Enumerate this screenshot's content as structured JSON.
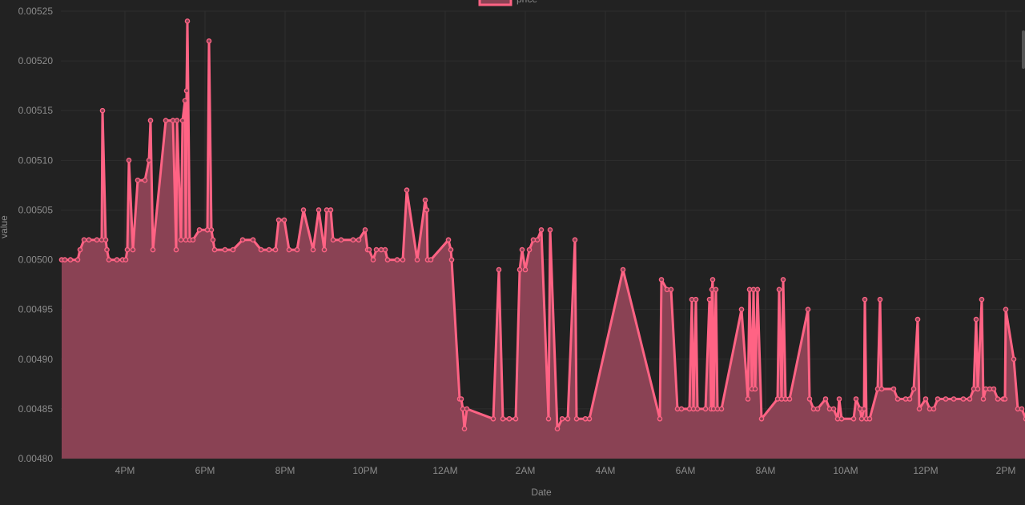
{
  "chart_data": {
    "type": "area",
    "xlabel": "Date",
    "ylabel": "value",
    "legend": {
      "position": "top-center",
      "entries": [
        "price"
      ]
    },
    "grid": true,
    "colors": {
      "line": "#ff6384",
      "fill": "#8a4254",
      "background": "#222222",
      "grid": "#2e2e2e",
      "text": "#8c8c8c"
    },
    "ylim": [
      0.0048,
      0.00525
    ],
    "xlim_hours": [
      14.4,
      38.4
    ],
    "y_ticks": [
      "0.00480",
      "0.00485",
      "0.00490",
      "0.00495",
      "0.00500",
      "0.00505",
      "0.00510",
      "0.00515",
      "0.00520",
      "0.00525"
    ],
    "x_ticks": [
      {
        "label": "4PM",
        "hour": 16
      },
      {
        "label": "6PM",
        "hour": 18
      },
      {
        "label": "8PM",
        "hour": 20
      },
      {
        "label": "10PM",
        "hour": 22
      },
      {
        "label": "12AM",
        "hour": 24
      },
      {
        "label": "2AM",
        "hour": 26
      },
      {
        "label": "4AM",
        "hour": 28
      },
      {
        "label": "6AM",
        "hour": 30
      },
      {
        "label": "8AM",
        "hour": 32
      },
      {
        "label": "10AM",
        "hour": 34
      },
      {
        "label": "12PM",
        "hour": 36
      },
      {
        "label": "2PM",
        "hour": 38
      }
    ],
    "series": [
      {
        "name": "price",
        "points": [
          [
            14.42,
            0.005
          ],
          [
            14.5,
            0.005
          ],
          [
            14.64,
            0.005
          ],
          [
            14.82,
            0.005
          ],
          [
            14.88,
            0.00501
          ],
          [
            14.98,
            0.00502
          ],
          [
            15.1,
            0.00502
          ],
          [
            15.3,
            0.00502
          ],
          [
            15.42,
            0.00502
          ],
          [
            15.44,
            0.00515
          ],
          [
            15.52,
            0.00502
          ],
          [
            15.55,
            0.00501
          ],
          [
            15.6,
            0.005
          ],
          [
            15.8,
            0.005
          ],
          [
            15.94,
            0.005
          ],
          [
            16.02,
            0.005
          ],
          [
            16.06,
            0.00501
          ],
          [
            16.1,
            0.0051
          ],
          [
            16.2,
            0.00501
          ],
          [
            16.32,
            0.00508
          ],
          [
            16.5,
            0.00508
          ],
          [
            16.6,
            0.0051
          ],
          [
            16.64,
            0.00514
          ],
          [
            16.7,
            0.00501
          ],
          [
            17.02,
            0.00514
          ],
          [
            17.2,
            0.00514
          ],
          [
            17.28,
            0.00501
          ],
          [
            17.3,
            0.00514
          ],
          [
            17.4,
            0.00502
          ],
          [
            17.44,
            0.00514
          ],
          [
            17.5,
            0.00516
          ],
          [
            17.52,
            0.00502
          ],
          [
            17.54,
            0.00517
          ],
          [
            17.56,
            0.00524
          ],
          [
            17.62,
            0.00502
          ],
          [
            17.7,
            0.00502
          ],
          [
            17.86,
            0.00503
          ],
          [
            18.06,
            0.00503
          ],
          [
            18.1,
            0.00522
          ],
          [
            18.16,
            0.00503
          ],
          [
            18.2,
            0.00502
          ],
          [
            18.24,
            0.00501
          ],
          [
            18.5,
            0.00501
          ],
          [
            18.7,
            0.00501
          ],
          [
            18.94,
            0.00502
          ],
          [
            19.2,
            0.00502
          ],
          [
            19.4,
            0.00501
          ],
          [
            19.6,
            0.00501
          ],
          [
            19.76,
            0.00501
          ],
          [
            19.84,
            0.00504
          ],
          [
            19.98,
            0.00504
          ],
          [
            20.1,
            0.00501
          ],
          [
            20.3,
            0.00501
          ],
          [
            20.46,
            0.00505
          ],
          [
            20.7,
            0.00501
          ],
          [
            20.84,
            0.00505
          ],
          [
            20.98,
            0.00501
          ],
          [
            21.04,
            0.00505
          ],
          [
            21.14,
            0.00505
          ],
          [
            21.2,
            0.00502
          ],
          [
            21.4,
            0.00502
          ],
          [
            21.7,
            0.00502
          ],
          [
            21.84,
            0.00502
          ],
          [
            22.0,
            0.00503
          ],
          [
            22.06,
            0.00501
          ],
          [
            22.1,
            0.00501
          ],
          [
            22.2,
            0.005
          ],
          [
            22.28,
            0.00501
          ],
          [
            22.4,
            0.00501
          ],
          [
            22.5,
            0.00501
          ],
          [
            22.56,
            0.005
          ],
          [
            22.8,
            0.005
          ],
          [
            22.94,
            0.005
          ],
          [
            23.04,
            0.00507
          ],
          [
            23.3,
            0.005
          ],
          [
            23.5,
            0.00506
          ],
          [
            23.54,
            0.00505
          ],
          [
            23.56,
            0.005
          ],
          [
            23.64,
            0.005
          ],
          [
            24.08,
            0.00502
          ],
          [
            24.14,
            0.00501
          ],
          [
            24.16,
            0.005
          ],
          [
            24.36,
            0.00486
          ],
          [
            24.4,
            0.00486
          ],
          [
            24.44,
            0.00485
          ],
          [
            24.48,
            0.00483
          ],
          [
            24.54,
            0.00485
          ],
          [
            25.2,
            0.00484
          ],
          [
            25.34,
            0.00499
          ],
          [
            25.44,
            0.00484
          ],
          [
            25.6,
            0.00484
          ],
          [
            25.76,
            0.00484
          ],
          [
            25.86,
            0.00499
          ],
          [
            25.92,
            0.00501
          ],
          [
            26.0,
            0.00499
          ],
          [
            26.1,
            0.00501
          ],
          [
            26.2,
            0.00502
          ],
          [
            26.3,
            0.00502
          ],
          [
            26.4,
            0.00503
          ],
          [
            26.58,
            0.00484
          ],
          [
            26.62,
            0.00503
          ],
          [
            26.8,
            0.00483
          ],
          [
            26.92,
            0.00484
          ],
          [
            27.06,
            0.00484
          ],
          [
            27.24,
            0.00502
          ],
          [
            27.28,
            0.00484
          ],
          [
            27.5,
            0.00484
          ],
          [
            27.6,
            0.00484
          ],
          [
            28.44,
            0.00499
          ],
          [
            29.36,
            0.00484
          ],
          [
            29.4,
            0.00498
          ],
          [
            29.54,
            0.00497
          ],
          [
            29.64,
            0.00497
          ],
          [
            29.8,
            0.00485
          ],
          [
            29.9,
            0.00485
          ],
          [
            30.1,
            0.00485
          ],
          [
            30.16,
            0.00496
          ],
          [
            30.2,
            0.00485
          ],
          [
            30.26,
            0.00496
          ],
          [
            30.3,
            0.00485
          ],
          [
            30.5,
            0.00485
          ],
          [
            30.6,
            0.00496
          ],
          [
            30.64,
            0.00485
          ],
          [
            30.66,
            0.00497
          ],
          [
            30.68,
            0.00498
          ],
          [
            30.7,
            0.00485
          ],
          [
            30.76,
            0.00497
          ],
          [
            30.8,
            0.00485
          ],
          [
            30.9,
            0.00485
          ],
          [
            31.4,
            0.00495
          ],
          [
            31.56,
            0.00486
          ],
          [
            31.6,
            0.00497
          ],
          [
            31.66,
            0.00487
          ],
          [
            31.7,
            0.00497
          ],
          [
            31.74,
            0.00487
          ],
          [
            31.8,
            0.00497
          ],
          [
            31.9,
            0.00484
          ],
          [
            32.3,
            0.00486
          ],
          [
            32.34,
            0.00497
          ],
          [
            32.4,
            0.00486
          ],
          [
            32.44,
            0.00498
          ],
          [
            32.5,
            0.00486
          ],
          [
            32.6,
            0.00486
          ],
          [
            33.06,
            0.00495
          ],
          [
            33.1,
            0.00486
          ],
          [
            33.2,
            0.00485
          ],
          [
            33.3,
            0.00485
          ],
          [
            33.5,
            0.00486
          ],
          [
            33.6,
            0.00485
          ],
          [
            33.7,
            0.00485
          ],
          [
            33.8,
            0.00484
          ],
          [
            33.84,
            0.00486
          ],
          [
            33.9,
            0.00484
          ],
          [
            34.2,
            0.00484
          ],
          [
            34.26,
            0.00486
          ],
          [
            34.36,
            0.00485
          ],
          [
            34.4,
            0.00484
          ],
          [
            34.46,
            0.00485
          ],
          [
            34.48,
            0.00496
          ],
          [
            34.52,
            0.00484
          ],
          [
            34.6,
            0.00484
          ],
          [
            34.8,
            0.00487
          ],
          [
            34.86,
            0.00496
          ],
          [
            34.9,
            0.00487
          ],
          [
            35.2,
            0.00487
          ],
          [
            35.3,
            0.00486
          ],
          [
            35.5,
            0.00486
          ],
          [
            35.6,
            0.00486
          ],
          [
            35.7,
            0.00487
          ],
          [
            35.8,
            0.00494
          ],
          [
            35.84,
            0.00485
          ],
          [
            36.0,
            0.00486
          ],
          [
            36.1,
            0.00485
          ],
          [
            36.2,
            0.00485
          ],
          [
            36.3,
            0.00486
          ],
          [
            36.5,
            0.00486
          ],
          [
            36.7,
            0.00486
          ],
          [
            36.94,
            0.00486
          ],
          [
            37.1,
            0.00486
          ],
          [
            37.2,
            0.00487
          ],
          [
            37.26,
            0.00494
          ],
          [
            37.3,
            0.00487
          ],
          [
            37.4,
            0.00496
          ],
          [
            37.44,
            0.00486
          ],
          [
            37.5,
            0.00487
          ],
          [
            37.6,
            0.00487
          ],
          [
            37.7,
            0.00487
          ],
          [
            37.8,
            0.00486
          ],
          [
            37.94,
            0.00486
          ],
          [
            37.98,
            0.00486
          ],
          [
            38.0,
            0.00495
          ],
          [
            38.2,
            0.0049
          ],
          [
            38.3,
            0.00485
          ],
          [
            38.4,
            0.00485
          ],
          [
            38.5,
            0.00484
          ],
          [
            38.84,
            0.00484
          ]
        ]
      }
    ]
  }
}
